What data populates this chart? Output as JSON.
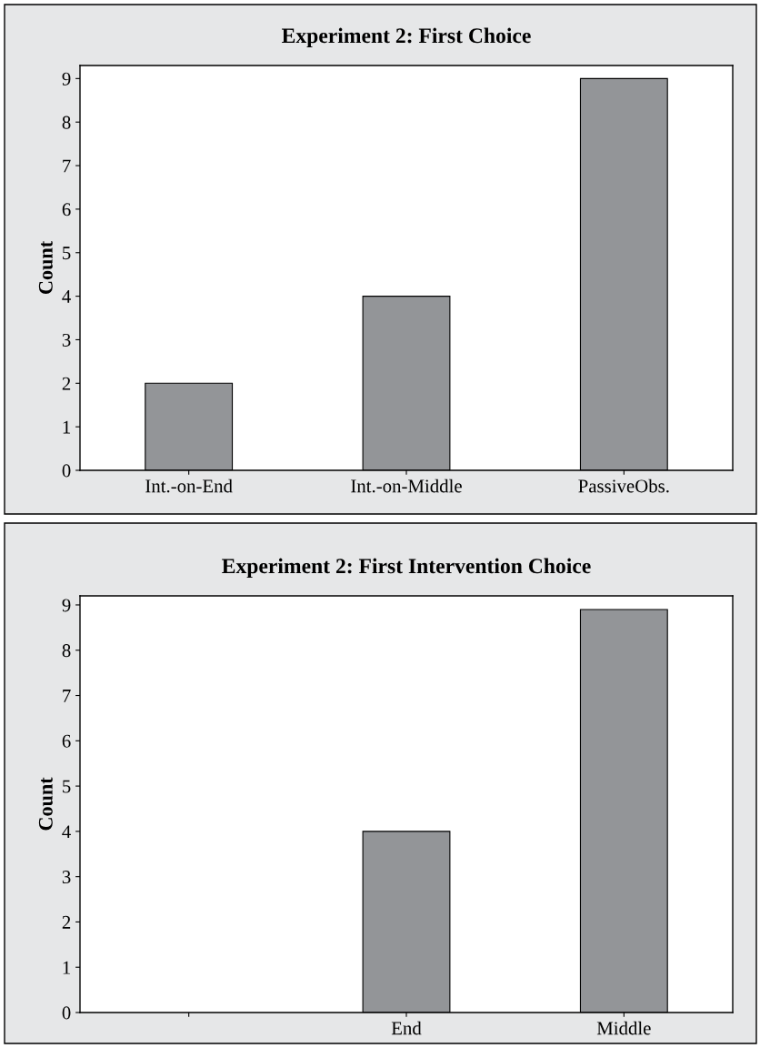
{
  "chart_data": [
    {
      "type": "bar",
      "title": "Experiment 2: First Choice",
      "ylabel": "Count",
      "categories": [
        "Int.-on-End",
        "Int.-on-Middle",
        "PassiveObs."
      ],
      "values": [
        2,
        4,
        9
      ],
      "color": "#939598",
      "ylim": [
        0,
        9.3
      ],
      "yticks": [
        0,
        1,
        2,
        3,
        4,
        5,
        6,
        7,
        8,
        9
      ],
      "grid": false,
      "legend": false
    },
    {
      "type": "bar",
      "title": "Experiment 2: First Intervention Choice",
      "ylabel": "Count",
      "categories": [
        null,
        "End",
        "Middle"
      ],
      "values": [
        null,
        4,
        8.9
      ],
      "color": "#939598",
      "ylim": [
        0,
        9.2
      ],
      "yticks": [
        0,
        1,
        2,
        3,
        4,
        5,
        6,
        7,
        8,
        9
      ],
      "grid": false,
      "legend": false
    }
  ]
}
